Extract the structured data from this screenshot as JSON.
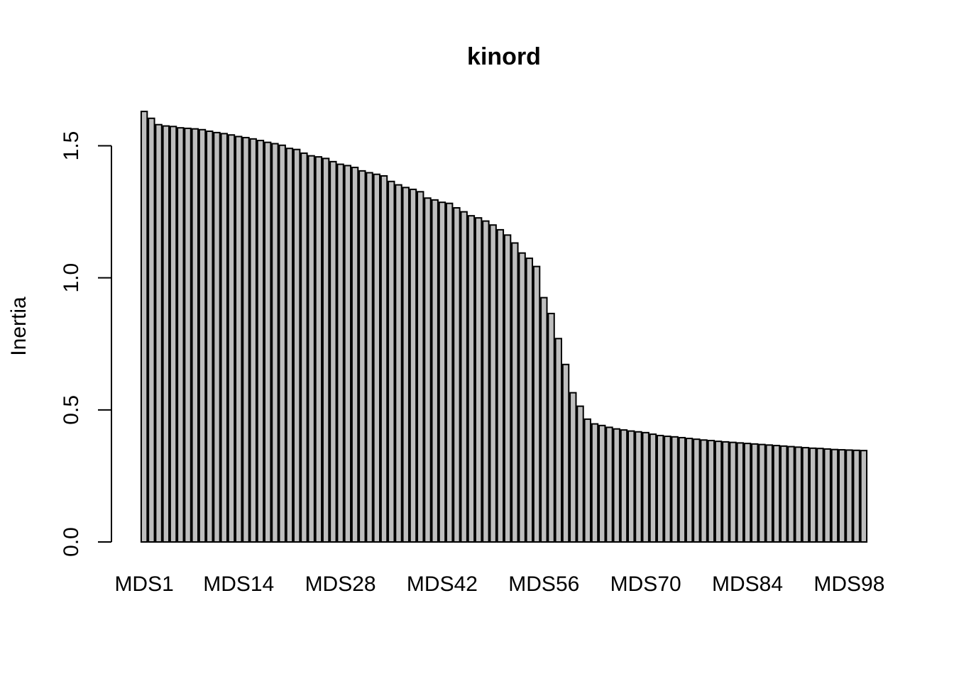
{
  "chart_data": {
    "type": "bar",
    "title": "kinord",
    "xlabel": "",
    "ylabel": "Inertia",
    "ylim": [
      0,
      1.6
    ],
    "yticks": [
      "0.0",
      "0.5",
      "1.0",
      "1.5"
    ],
    "x_tick_labels": [
      "MDS1",
      "MDS14",
      "MDS28",
      "MDS42",
      "MDS56",
      "MDS70",
      "MDS84",
      "MDS98"
    ],
    "grid": false,
    "bar_color": "#bebebe",
    "values": [
      1.63,
      1.604,
      1.58,
      1.575,
      1.573,
      1.568,
      1.566,
      1.564,
      1.561,
      1.555,
      1.55,
      1.546,
      1.541,
      1.535,
      1.531,
      1.526,
      1.52,
      1.513,
      1.508,
      1.502,
      1.49,
      1.486,
      1.472,
      1.462,
      1.458,
      1.452,
      1.44,
      1.43,
      1.425,
      1.418,
      1.405,
      1.398,
      1.392,
      1.386,
      1.365,
      1.352,
      1.342,
      1.335,
      1.326,
      1.302,
      1.295,
      1.286,
      1.282,
      1.265,
      1.25,
      1.235,
      1.227,
      1.215,
      1.2,
      1.182,
      1.162,
      1.132,
      1.094,
      1.074,
      1.043,
      0.925,
      0.865,
      0.77,
      0.672,
      0.565,
      0.514,
      0.465,
      0.447,
      0.441,
      0.434,
      0.428,
      0.424,
      0.42,
      0.417,
      0.414,
      0.408,
      0.403,
      0.4,
      0.398,
      0.395,
      0.392,
      0.389,
      0.386,
      0.384,
      0.381,
      0.379,
      0.377,
      0.375,
      0.373,
      0.371,
      0.369,
      0.367,
      0.365,
      0.363,
      0.361,
      0.359,
      0.357,
      0.355,
      0.354,
      0.352,
      0.35,
      0.349,
      0.348,
      0.347,
      0.346
    ]
  }
}
